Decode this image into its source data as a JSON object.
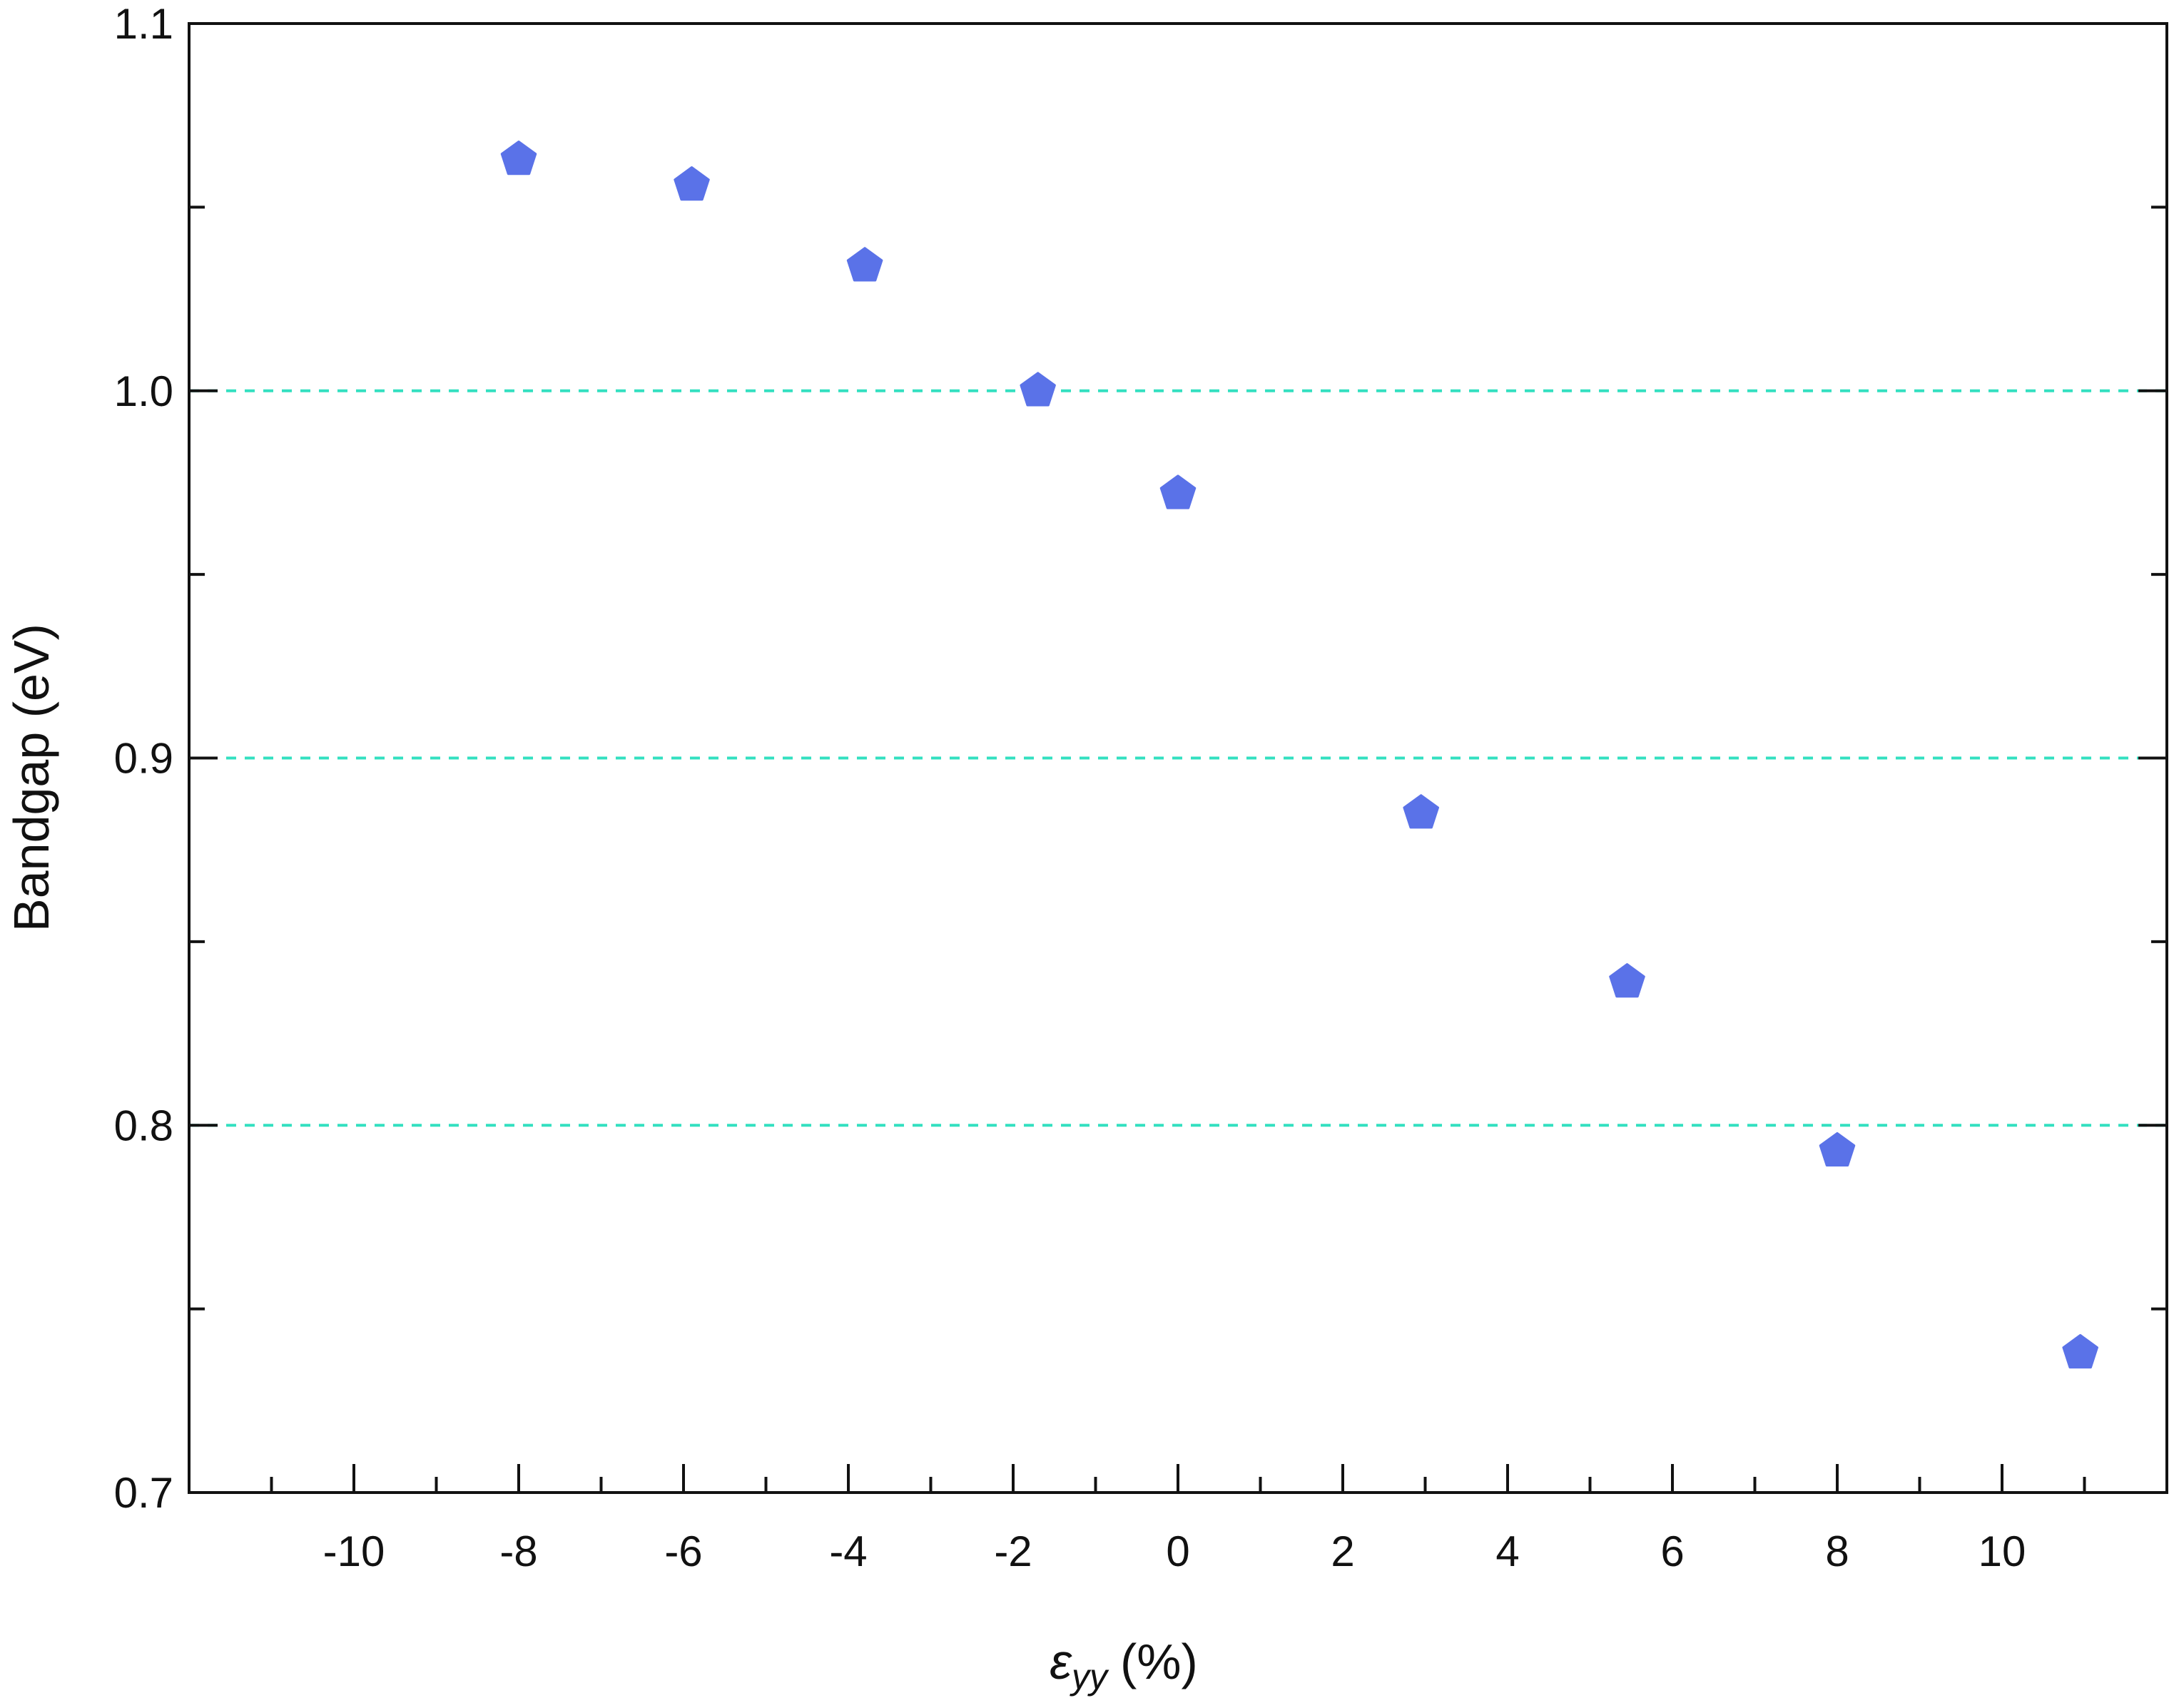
{
  "chart_data": {
    "type": "scatter",
    "title": "",
    "xlabel": {
      "symbol": "ε",
      "subscript": "yy",
      "unit": "(%)"
    },
    "ylabel": "Bandgap (eV)",
    "xlim": [
      -12,
      12
    ],
    "ylim": [
      0.7,
      1.1
    ],
    "xticks": [
      -10,
      -8,
      -6,
      -4,
      -2,
      0,
      2,
      4,
      6,
      8,
      10
    ],
    "xtick_labels": [
      "-10",
      "-8",
      "-6",
      "-4",
      "-2",
      "0",
      "2",
      "4",
      "6",
      "8",
      "10"
    ],
    "xminor_ticks": [
      -11,
      -9,
      -7,
      -5,
      -3,
      -1,
      1,
      3,
      5,
      7,
      9,
      11
    ],
    "yticks": [
      0.7,
      0.8,
      0.9,
      1.0,
      1.1
    ],
    "ytick_labels": [
      "0.7",
      "0.8",
      "0.9",
      "1.0",
      "1.1"
    ],
    "yminor_ticks": [
      0.75,
      0.85,
      0.95,
      1.05
    ],
    "gridlines_y": [
      0.8,
      0.9,
      1.0
    ],
    "marker": "pentagon",
    "marker_color": "#5a72e8",
    "grid_color": "#33e0c0",
    "series": [
      {
        "name": "Bandgap",
        "x": [
          -8.0,
          -5.9,
          -3.8,
          -1.7,
          0.0,
          2.95,
          5.45,
          8.0,
          10.95
        ],
        "y": [
          1.063,
          1.056,
          1.034,
          1.0,
          0.972,
          0.885,
          0.839,
          0.793,
          0.738
        ]
      }
    ]
  }
}
